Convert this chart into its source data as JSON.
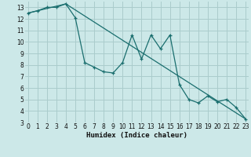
{
  "xlabel": "Humidex (Indice chaleur)",
  "bg_color": "#cce8e8",
  "grid_color": "#aacccc",
  "line_color": "#1a6e6e",
  "line1_x": [
    0,
    1,
    2,
    3,
    4,
    5,
    6,
    7,
    8,
    9,
    10,
    11,
    12,
    13,
    14,
    15,
    16,
    17,
    18,
    19,
    20,
    21,
    22,
    23
  ],
  "line1_y": [
    12.5,
    12.7,
    13.0,
    13.0,
    13.3,
    12.1,
    8.2,
    7.8,
    7.4,
    7.3,
    8.2,
    10.6,
    8.5,
    10.6,
    9.4,
    10.6,
    6.3,
    5.0,
    4.7,
    5.3,
    4.8,
    5.0,
    4.3,
    3.3
  ],
  "line2_x": [
    0,
    4,
    23
  ],
  "line2_y": [
    12.5,
    13.3,
    3.3
  ],
  "xlim": [
    0,
    23
  ],
  "ylim": [
    3,
    13.5
  ],
  "xticks": [
    0,
    1,
    2,
    3,
    4,
    5,
    6,
    7,
    8,
    9,
    10,
    11,
    12,
    13,
    14,
    15,
    16,
    17,
    18,
    19,
    20,
    21,
    22,
    23
  ],
  "yticks": [
    3,
    4,
    5,
    6,
    7,
    8,
    9,
    10,
    11,
    12,
    13
  ],
  "xlabel_fontsize": 6.5,
  "tick_fontsize": 5.5
}
